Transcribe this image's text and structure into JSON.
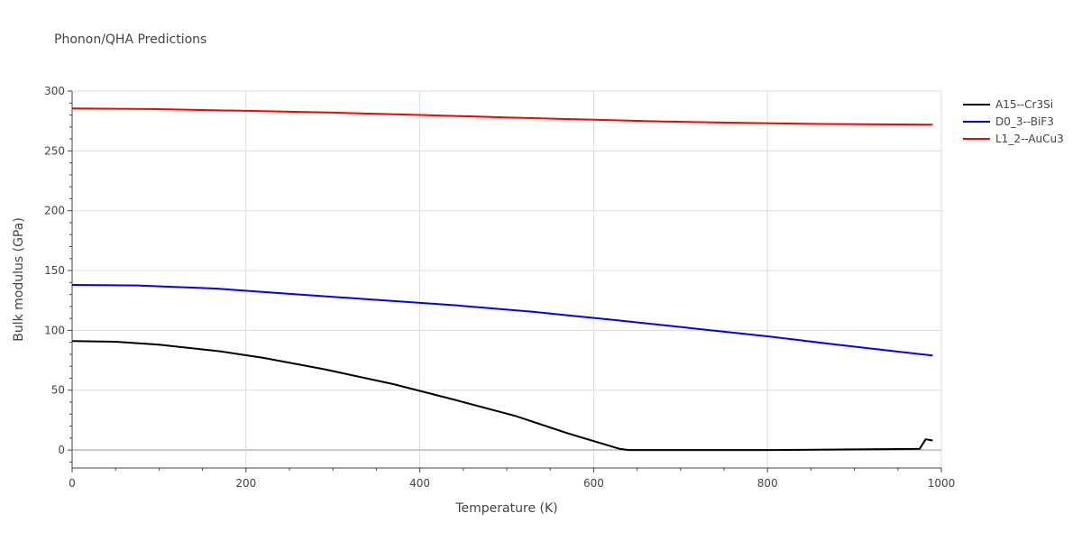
{
  "chart_data": {
    "type": "line",
    "title": "Phonon/QHA Predictions",
    "xlabel": "Temperature (K)",
    "ylabel": "Bulk modulus (GPa)",
    "xlim": [
      0,
      1000
    ],
    "ylim": [
      -15,
      300
    ],
    "xticks": [
      0,
      200,
      400,
      600,
      800,
      1000
    ],
    "yticks": [
      0,
      50,
      100,
      150,
      200,
      250,
      300
    ],
    "grid": true,
    "legend_position": "top-right",
    "series": [
      {
        "name": "A15--Cr3Si",
        "color": "#000000",
        "x": [
          0,
          50,
          100,
          170,
          220,
          290,
          370,
          440,
          510,
          570,
          630,
          640,
          700,
          800,
          900,
          975,
          982,
          990
        ],
        "y": [
          91,
          90.5,
          88,
          82.5,
          77,
          67.5,
          55,
          42,
          28.5,
          14,
          1,
          0,
          0,
          0,
          0.5,
          1,
          9,
          8
        ]
      },
      {
        "name": "D0_3--BiF3",
        "color": "#0000ff",
        "x": [
          0,
          75,
          165,
          250,
          340,
          440,
          530,
          620,
          710,
          800,
          880,
          990
        ],
        "y": [
          138,
          137.5,
          135,
          130.5,
          126,
          121,
          115.5,
          109,
          102,
          95,
          88,
          79
        ]
      },
      {
        "name": "L1_2--AuCu3",
        "color": "#ff0000",
        "x": [
          0,
          90,
          200,
          300,
          400,
          500,
          600,
          680,
          770,
          860,
          990
        ],
        "y": [
          285.5,
          285,
          283.5,
          282,
          280,
          278,
          276,
          274.5,
          273.5,
          272.5,
          272
        ]
      }
    ]
  }
}
